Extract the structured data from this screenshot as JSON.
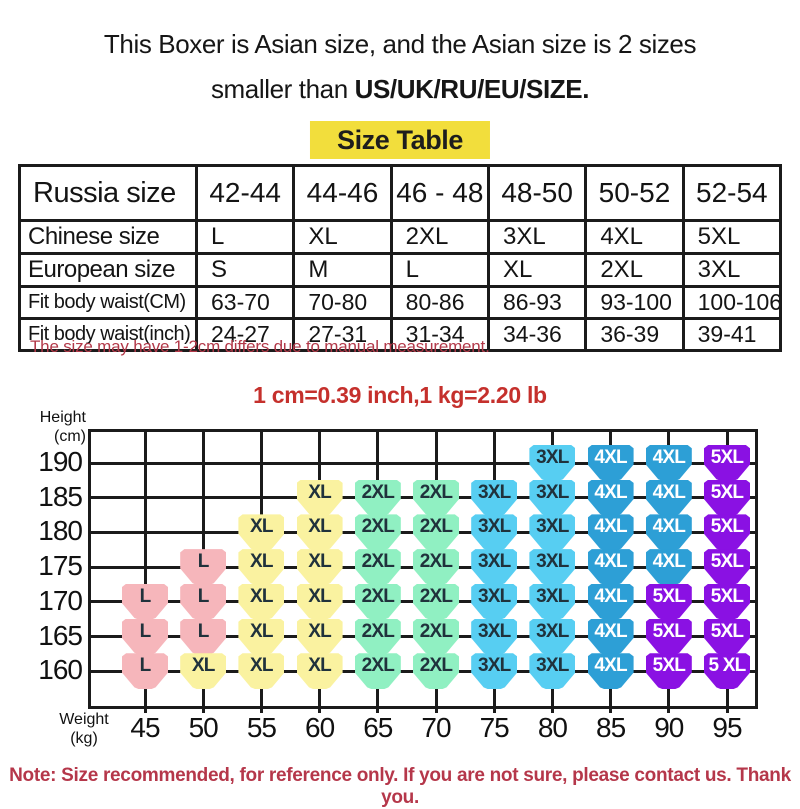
{
  "title": {
    "line1": "This Boxer is Asian size, and the Asian size is 2 sizes",
    "line2_regular": "smaller than ",
    "line2_bold": "US/UK/RU/EU/SIZE."
  },
  "badge": {
    "label": "Size Table",
    "bg_color": "#f2de3c"
  },
  "notes": {
    "measurement": "The size may have 1-2cm differs due to manual measurement.",
    "conversion": "1 cm=0.39 inch,1 kg=2.20 lb",
    "bottom": "Note: Size recommended, for reference only. If you are not sure, please contact us. Thank you.",
    "note_color": "#b5374a",
    "conversion_color": "#c5302c"
  },
  "chart_data": [
    {
      "type": "table",
      "title": "Size Table",
      "rows": [
        {
          "label": "Russia size",
          "values": [
            "42-44",
            "44-46",
            "46 - 48",
            "48-50",
            "50-52",
            "52-54"
          ]
        },
        {
          "label": "Chinese size",
          "values": [
            "L",
            "XL",
            "2XL",
            "3XL",
            "4XL",
            "5XL"
          ]
        },
        {
          "label": "European size",
          "values": [
            "S",
            "M",
            "L",
            "XL",
            "2XL",
            "3XL"
          ]
        },
        {
          "label": "Fit body waist(CM)",
          "values": [
            "63-70",
            "70-80",
            "80-86",
            "86-93",
            "93-100",
            "100-106"
          ]
        },
        {
          "label": "Fit body waist(inch)",
          "values": [
            "24-27",
            "27-31",
            "31-34",
            "34-36",
            "36-39",
            "39-41"
          ]
        }
      ]
    },
    {
      "type": "heatmap",
      "ylabel_line1": "Height",
      "ylabel_line2": "(cm)",
      "xlabel_line1": "Weight",
      "xlabel_line2": "(kg)",
      "y": [
        190,
        185,
        180,
        175,
        170,
        165,
        160
      ],
      "x": [
        45,
        50,
        55,
        60,
        65,
        70,
        75,
        80,
        85,
        90,
        95
      ],
      "cells": [
        [
          null,
          null,
          null,
          null,
          null,
          null,
          null,
          "3XL",
          "4XL",
          "4XL",
          "5XL"
        ],
        [
          null,
          null,
          null,
          "XL",
          "2XL",
          "2XL",
          "3XL",
          "3XL",
          "4XL",
          "4XL",
          "5XL"
        ],
        [
          null,
          null,
          "XL",
          "XL",
          "2XL",
          "2XL",
          "3XL",
          "3XL",
          "4XL",
          "4XL",
          "5XL"
        ],
        [
          null,
          "L",
          "XL",
          "XL",
          "2XL",
          "2XL",
          "3XL",
          "3XL",
          "4XL",
          "4XL",
          "5XL"
        ],
        [
          "L",
          "L",
          "XL",
          "XL",
          "2XL",
          "2XL",
          "3XL",
          "3XL",
          "4XL",
          "5XL",
          "5XL"
        ],
        [
          "L",
          "L",
          "XL",
          "XL",
          "2XL",
          "2XL",
          "3XL",
          "3XL",
          "4XL",
          "5XL",
          "5XL"
        ],
        [
          "L",
          "XL",
          "XL",
          "XL",
          "2XL",
          "2XL",
          "3XL",
          "3XL",
          "4XL",
          "5XL",
          "5 XL"
        ]
      ],
      "size_colors": {
        "L": "#f6b6bb",
        "XL": "#faf2a0",
        "2XL": "#90f0c2",
        "3XL": "#57cef2",
        "4XL": "#2d9fd6",
        "5XL": "#8a11e3"
      },
      "dark_text_color": "#20323c",
      "light_text_color": "#ffffff",
      "light_text_sizes": [
        "4XL",
        "5XL"
      ],
      "grid_color": "#1b1b1b"
    }
  ]
}
